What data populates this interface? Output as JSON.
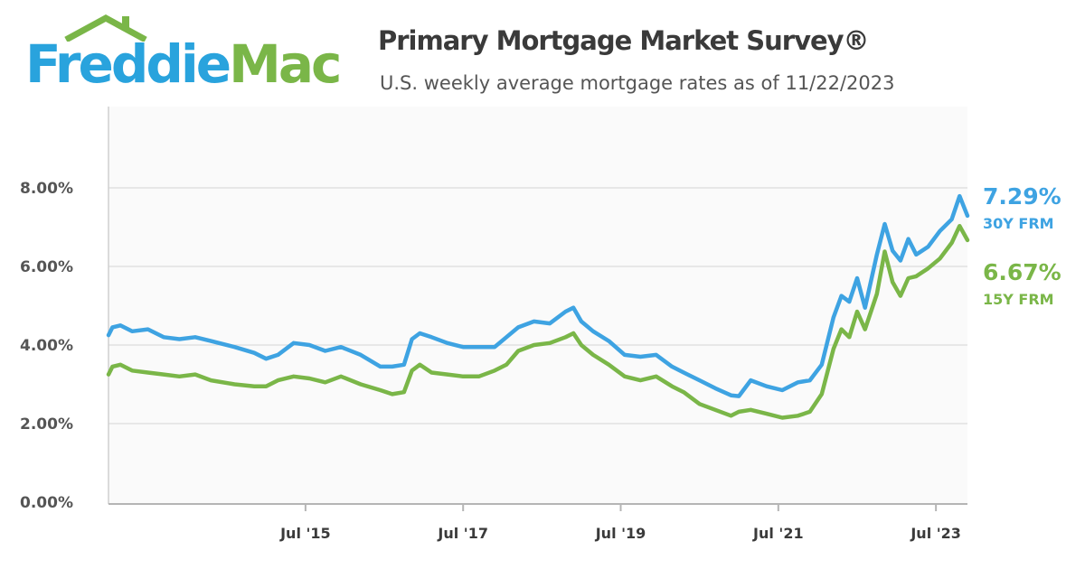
{
  "brand": {
    "name_part1": "Freddie",
    "name_part2": "Mac",
    "colors": {
      "blue": "#29a3dd",
      "green": "#7ab648"
    }
  },
  "title": "Primary Mortgage Market Survey®",
  "subtitle": "U.S. weekly average mortgage rates as of 11/22/2023",
  "chart_data": {
    "type": "line",
    "title": "Primary Mortgage Market Survey®",
    "subtitle": "U.S. weekly average mortgage rates as of 11/22/2023",
    "xlabel": "",
    "ylabel": "",
    "x_range": [
      2013.0,
      2023.9
    ],
    "ylim": [
      0,
      10
    ],
    "y_ticks": [
      0,
      2,
      4,
      6,
      8
    ],
    "y_tick_labels": [
      "0.00%",
      "2.00%",
      "4.00%",
      "6.00%",
      "8.00%"
    ],
    "x_ticks": [
      2015.5,
      2017.5,
      2019.5,
      2021.5,
      2023.5
    ],
    "x_tick_labels": [
      "Jul '15",
      "Jul '17",
      "Jul '19",
      "Jul '21",
      "Jul '23"
    ],
    "grid": true,
    "series": [
      {
        "name": "30Y FRM",
        "color": "#3ea3e2",
        "latest_label": "7.29%",
        "x": [
          2013.0,
          2013.05,
          2013.15,
          2013.3,
          2013.5,
          2013.7,
          2013.9,
          2014.1,
          2014.3,
          2014.6,
          2014.85,
          2015.0,
          2015.15,
          2015.35,
          2015.55,
          2015.75,
          2015.95,
          2016.2,
          2016.45,
          2016.6,
          2016.75,
          2016.85,
          2016.95,
          2017.1,
          2017.3,
          2017.5,
          2017.7,
          2017.9,
          2018.05,
          2018.2,
          2018.4,
          2018.6,
          2018.8,
          2018.9,
          2019.0,
          2019.15,
          2019.35,
          2019.55,
          2019.75,
          2019.95,
          2020.15,
          2020.3,
          2020.5,
          2020.7,
          2020.9,
          2021.0,
          2021.15,
          2021.35,
          2021.55,
          2021.75,
          2021.9,
          2022.05,
          2022.2,
          2022.3,
          2022.4,
          2022.5,
          2022.6,
          2022.75,
          2022.85,
          2022.95,
          2023.05,
          2023.15,
          2023.25,
          2023.4,
          2023.55,
          2023.7,
          2023.8,
          2023.9
        ],
        "values": [
          4.25,
          4.45,
          4.5,
          4.35,
          4.4,
          4.2,
          4.15,
          4.2,
          4.1,
          3.95,
          3.8,
          3.65,
          3.75,
          4.05,
          4.0,
          3.85,
          3.95,
          3.75,
          3.45,
          3.45,
          3.5,
          4.15,
          4.3,
          4.2,
          4.05,
          3.95,
          3.95,
          3.95,
          4.2,
          4.45,
          4.6,
          4.55,
          4.85,
          4.95,
          4.6,
          4.35,
          4.1,
          3.75,
          3.7,
          3.75,
          3.45,
          3.3,
          3.1,
          2.9,
          2.72,
          2.7,
          3.1,
          2.95,
          2.85,
          3.05,
          3.1,
          3.5,
          4.7,
          5.25,
          5.1,
          5.7,
          4.95,
          6.3,
          7.08,
          6.4,
          6.15,
          6.7,
          6.3,
          6.5,
          6.9,
          7.2,
          7.79,
          7.29
        ]
      },
      {
        "name": "15Y FRM",
        "color": "#7ab648",
        "latest_label": "6.67%",
        "x": [
          2013.0,
          2013.05,
          2013.15,
          2013.3,
          2013.5,
          2013.7,
          2013.9,
          2014.1,
          2014.3,
          2014.6,
          2014.85,
          2015.0,
          2015.15,
          2015.35,
          2015.55,
          2015.75,
          2015.95,
          2016.2,
          2016.45,
          2016.6,
          2016.75,
          2016.85,
          2016.95,
          2017.1,
          2017.3,
          2017.5,
          2017.7,
          2017.9,
          2018.05,
          2018.2,
          2018.4,
          2018.6,
          2018.8,
          2018.9,
          2019.0,
          2019.15,
          2019.35,
          2019.55,
          2019.75,
          2019.95,
          2020.15,
          2020.3,
          2020.5,
          2020.7,
          2020.9,
          2021.0,
          2021.15,
          2021.35,
          2021.55,
          2021.75,
          2021.9,
          2022.05,
          2022.2,
          2022.3,
          2022.4,
          2022.5,
          2022.6,
          2022.75,
          2022.85,
          2022.95,
          2023.05,
          2023.15,
          2023.25,
          2023.4,
          2023.55,
          2023.7,
          2023.8,
          2023.9
        ],
        "values": [
          3.25,
          3.45,
          3.5,
          3.35,
          3.3,
          3.25,
          3.2,
          3.25,
          3.1,
          3.0,
          2.95,
          2.95,
          3.1,
          3.2,
          3.15,
          3.05,
          3.2,
          3.0,
          2.85,
          2.75,
          2.8,
          3.35,
          3.5,
          3.3,
          3.25,
          3.2,
          3.2,
          3.35,
          3.5,
          3.85,
          4.0,
          4.05,
          4.2,
          4.3,
          4.0,
          3.75,
          3.5,
          3.2,
          3.1,
          3.2,
          2.95,
          2.8,
          2.5,
          2.35,
          2.2,
          2.3,
          2.35,
          2.25,
          2.15,
          2.2,
          2.3,
          2.75,
          3.9,
          4.4,
          4.2,
          4.85,
          4.4,
          5.3,
          6.38,
          5.6,
          5.25,
          5.7,
          5.75,
          5.95,
          6.2,
          6.6,
          7.03,
          6.67
        ]
      }
    ]
  }
}
